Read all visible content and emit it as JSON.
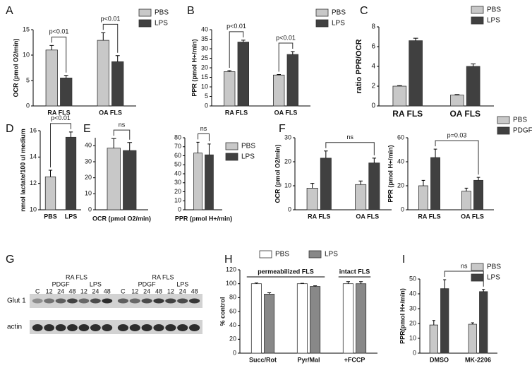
{
  "chart_data": [
    {
      "type": "bar",
      "panel": "A",
      "ylabel": "OCR (pmol O2/min)",
      "categories": [
        "RA FLS",
        "OA FLS"
      ],
      "series": [
        {
          "name": "PBS",
          "color": "#c8c8c8",
          "values": [
            11,
            12.9
          ],
          "errors": [
            0.9,
            1.5
          ]
        },
        {
          "name": "LPS",
          "color": "#404040",
          "values": [
            5.5,
            8.7
          ],
          "errors": [
            0.5,
            1.2
          ]
        }
      ],
      "ylim": [
        0,
        15
      ],
      "yticks": [
        0,
        5,
        10,
        15
      ],
      "annotations": [
        "p<0.01",
        "p<0.01"
      ],
      "legend": true
    },
    {
      "type": "bar",
      "panel": "B",
      "ylabel": "PPR (pmol H+/min)",
      "categories": [
        "RA FLS",
        "OA FLS"
      ],
      "series": [
        {
          "name": "PBS",
          "color": "#c8c8c8",
          "values": [
            18,
            16.2
          ],
          "errors": [
            0.5,
            0.3
          ]
        },
        {
          "name": "LPS",
          "color": "#404040",
          "values": [
            33.5,
            27
          ],
          "errors": [
            1,
            1.5
          ]
        }
      ],
      "ylim": [
        0,
        40
      ],
      "yticks": [
        0,
        5,
        10,
        15,
        20,
        25,
        30,
        35,
        40
      ],
      "annotations": [
        "p<0.01",
        "p<0.01"
      ],
      "legend": true
    },
    {
      "type": "bar",
      "panel": "C",
      "ylabel": "ratio PPR/OCR",
      "categories": [
        "RA FLS",
        "OA FLS"
      ],
      "series": [
        {
          "name": "PBS",
          "color": "#c8c8c8",
          "values": [
            2,
            1.1
          ],
          "errors": [
            0.05,
            0.05
          ]
        },
        {
          "name": "LPS",
          "color": "#404040",
          "values": [
            6.6,
            4
          ],
          "errors": [
            0.25,
            0.25
          ]
        }
      ],
      "ylim": [
        0,
        8
      ],
      "yticks": [
        0,
        2,
        4,
        6,
        8
      ],
      "annotations": [],
      "legend": true
    },
    {
      "type": "bar",
      "panel": "D",
      "ylabel": "nmol lactate/100 ul medium",
      "categories": [
        "PBS",
        "LPS"
      ],
      "values": [
        12.5,
        15.5
      ],
      "errors": [
        0.5,
        0.4
      ],
      "colors": [
        "#c8c8c8",
        "#404040"
      ],
      "ylim": [
        10,
        16
      ],
      "yticks": [
        10,
        12,
        14,
        16
      ],
      "annotations": [
        "p<0.01"
      ],
      "legend": false
    },
    {
      "type": "bar",
      "panel": "E",
      "xlabel": "OCR (pmol O2/min)",
      "categories": [
        null
      ],
      "series": [
        {
          "name": "PBS",
          "color": "#c8c8c8",
          "values": [
            38.5
          ],
          "errors": [
            6
          ]
        },
        {
          "name": "LPS",
          "color": "#404040",
          "values": [
            37
          ],
          "errors": [
            5
          ]
        }
      ],
      "ylim": [
        0,
        45
      ],
      "yticks": [
        0,
        10,
        20,
        30,
        40
      ],
      "annotations": [
        "ns"
      ],
      "legend": false
    },
    {
      "type": "bar",
      "xlabel": "PPR (pmol H+/min)",
      "categories": [
        null
      ],
      "series": [
        {
          "name": "PBS",
          "color": "#c8c8c8",
          "values": [
            63
          ],
          "errors": [
            12
          ]
        },
        {
          "name": "LPS",
          "color": "#404040",
          "values": [
            61
          ],
          "errors": [
            12
          ]
        }
      ],
      "ylim": [
        0,
        80
      ],
      "yticks": [
        0,
        10,
        20,
        30,
        40,
        50,
        60,
        70,
        80
      ],
      "annotations": [
        "ns"
      ],
      "legend": true
    },
    {
      "type": "bar",
      "panel": "F",
      "ylabel": "OCR (pmol O2/min)",
      "categories": [
        "RA FLS",
        "OA FLS"
      ],
      "series": [
        {
          "name": "PBS",
          "color": "#c8c8c8",
          "values": [
            9,
            10.5
          ],
          "errors": [
            2,
            1.5
          ]
        },
        {
          "name": "PDGF",
          "color": "#404040",
          "values": [
            21.5,
            19.5
          ],
          "errors": [
            3,
            2
          ]
        }
      ],
      "ylim": [
        0,
        30
      ],
      "yticks": [
        0,
        10,
        20,
        30
      ],
      "annotations": [
        "ns"
      ],
      "legend": false
    },
    {
      "type": "bar",
      "ylabel": "PPR (pmol H+/min)",
      "categories": [
        "RA FLS",
        "OA FLS"
      ],
      "series": [
        {
          "name": "PBS",
          "color": "#c8c8c8",
          "values": [
            20,
            15.5
          ],
          "errors": [
            4.5,
            2.5
          ]
        },
        {
          "name": "PDGF",
          "color": "#404040",
          "values": [
            43.5,
            24.5
          ],
          "errors": [
            7,
            2.5
          ]
        }
      ],
      "ylim": [
        0,
        60
      ],
      "yticks": [
        0,
        20,
        40,
        60
      ],
      "annotations": [
        "p=0.03"
      ],
      "legend": true
    },
    {
      "type": "bar",
      "panel": "H",
      "ylabel": "% control",
      "categories": [
        "Succ/Rot",
        "Pyr/Mal",
        "+FCCP"
      ],
      "series": [
        {
          "name": "PBS",
          "color": "#ffffff",
          "values": [
            100,
            100,
            100
          ],
          "errors": [
            1,
            0.5,
            3
          ]
        },
        {
          "name": "LPS",
          "color": "#888888",
          "values": [
            85,
            96,
            100
          ],
          "errors": [
            2,
            1,
            3
          ]
        }
      ],
      "ylim": [
        0,
        120
      ],
      "yticks": [
        0,
        20,
        40,
        60,
        80,
        100,
        120
      ],
      "annotations": [
        "permeabilized FLS",
        "intact FLS"
      ],
      "legend": true
    },
    {
      "type": "bar",
      "panel": "I",
      "ylabel": "PPR(pmol H+/min)",
      "categories": [
        "DMSO",
        "MK-2206"
      ],
      "series": [
        {
          "name": "PBS",
          "color": "#c8c8c8",
          "values": [
            19,
            19.5
          ],
          "errors": [
            3,
            1
          ]
        },
        {
          "name": "LPS",
          "color": "#404040",
          "values": [
            43.5,
            41.5
          ],
          "errors": [
            6,
            1.5
          ]
        }
      ],
      "ylim": [
        0,
        50
      ],
      "yticks": [
        0,
        10,
        20,
        30,
        40,
        50
      ],
      "annotations": [
        "ns"
      ],
      "legend": true
    }
  ],
  "blot": {
    "panel": "G",
    "rows": [
      "Glut 1",
      "actin"
    ],
    "groups": [
      {
        "title": "RA FLS",
        "treatments": [
          "PDGF",
          "LPS"
        ],
        "lanes": [
          "C",
          "12",
          "24",
          "48",
          "12",
          "24",
          "48"
        ]
      },
      {
        "title": "RA FLS",
        "treatments": [
          "PDGF",
          "LPS"
        ],
        "lanes": [
          "C",
          "12",
          "24",
          "48",
          "12",
          "24",
          "48"
        ]
      }
    ]
  }
}
